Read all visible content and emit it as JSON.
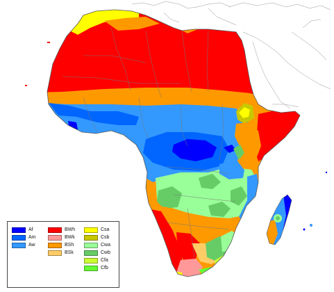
{
  "map": {
    "legend": {
      "columns": [
        [
          {
            "code": "Af",
            "color": "#0000ff"
          },
          {
            "code": "Am",
            "color": "#0066ff"
          },
          {
            "code": "Aw",
            "color": "#3399ff"
          }
        ],
        [
          {
            "code": "BWh",
            "color": "#ff0000"
          },
          {
            "code": "BWk",
            "color": "#ff9999"
          },
          {
            "code": "BSh",
            "color": "#ff9900"
          },
          {
            "code": "BSk",
            "color": "#ffcc66"
          }
        ],
        [
          {
            "code": "Csa",
            "color": "#ffff00"
          },
          {
            "code": "Csb",
            "color": "#c8c800"
          },
          {
            "code": "Cwa",
            "color": "#99ff99"
          },
          {
            "code": "Cwb",
            "color": "#66cc66"
          },
          {
            "code": "Cfa",
            "color": "#ccff33"
          },
          {
            "code": "Cfb",
            "color": "#66ff33"
          }
        ]
      ]
    },
    "colors": {
      "ocean": "#ffffff",
      "border": "#555555",
      "neighbor_outline": "#bbbbbb"
    }
  }
}
